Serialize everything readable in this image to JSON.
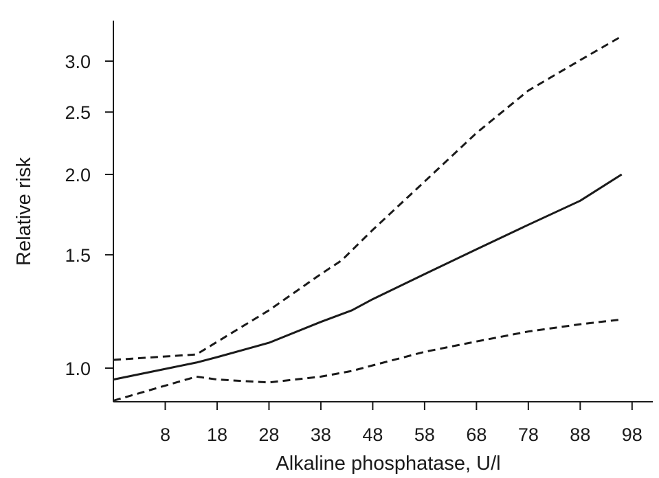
{
  "chart_data": {
    "type": "line",
    "title": "",
    "xlabel": "Alkaline phosphatase, U/l",
    "ylabel": "Relative risk",
    "xlim": [
      -2,
      102
    ],
    "ylim": [
      0.9,
      3.3
    ],
    "y_scale": "log",
    "grid": false,
    "legend": "none",
    "x_ticks": [
      8,
      18,
      28,
      38,
      48,
      58,
      68,
      78,
      88,
      98
    ],
    "x_tick_labels": [
      "8",
      "18",
      "28",
      "38",
      "48",
      "58",
      "68",
      "78",
      "88",
      "98"
    ],
    "y_ticks": [
      1.0,
      1.5,
      2.0,
      2.5,
      3.0
    ],
    "y_tick_labels": [
      "1.0",
      "1.5",
      "2.0",
      "2.5",
      "3.0"
    ],
    "series": [
      {
        "style": "solid",
        "x": [
          -2,
          14,
          18,
          28,
          38,
          44,
          48,
          58,
          68,
          78,
          88,
          96
        ],
        "y": [
          0.96,
          1.02,
          1.04,
          1.095,
          1.18,
          1.23,
          1.28,
          1.4,
          1.53,
          1.67,
          1.82,
          2.0
        ]
      },
      {
        "style": "dashed",
        "x": [
          -2,
          14,
          28,
          38,
          42,
          48,
          58,
          68,
          78,
          88,
          96
        ],
        "y": [
          1.03,
          1.05,
          1.23,
          1.4,
          1.47,
          1.64,
          1.95,
          2.32,
          2.7,
          3.01,
          3.28
        ]
      },
      {
        "style": "dashed",
        "x": [
          -2,
          14,
          18,
          28,
          38,
          44,
          48,
          58,
          68,
          78,
          88,
          96
        ],
        "y": [
          0.89,
          0.97,
          0.96,
          0.95,
          0.97,
          0.99,
          1.01,
          1.06,
          1.1,
          1.14,
          1.17,
          1.19
        ]
      }
    ]
  }
}
